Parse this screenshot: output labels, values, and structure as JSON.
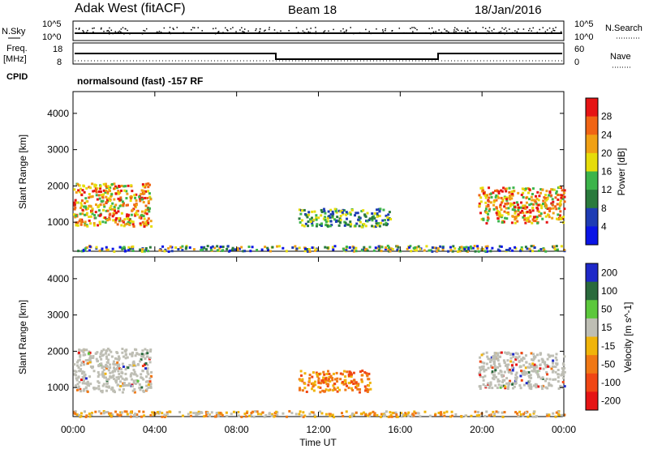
{
  "header": {
    "station": "Adak West (fitACF)",
    "beam": "Beam 18",
    "date": "18/Jan/2016"
  },
  "top_panels": {
    "nsky_label": "N.Sky",
    "nsearch_label": "N.Search",
    "freq_label_1": "Freq.",
    "freq_label_2": "[MHz]",
    "nave_label": "Nave",
    "cpid_label": "CPID",
    "cpid_value": "normalsound (fast) -157 RF",
    "noise_ticks": [
      "10^5",
      "10^0"
    ],
    "freq_ticks": [
      "18",
      "8"
    ],
    "nave_ticks": [
      "60",
      "0"
    ]
  },
  "colors": {
    "power": [
      "#0a14e6",
      "#1e3cb4",
      "#2a7a3c",
      "#3cb44a",
      "#e6dc0a",
      "#f0a014",
      "#f06414",
      "#e61414"
    ],
    "velocity": [
      "#1e28c8",
      "#2a6a3c",
      "#5cc83c",
      "#bebeb4",
      "#f0b40a",
      "#f07814",
      "#f04614",
      "#e61414"
    ]
  },
  "chart_data": [
    {
      "type": "heatmap",
      "title": "Power",
      "xlabel": "Time UT",
      "ylabel": "Slant Range [km]",
      "x_ticks": [
        "00:00",
        "04:00",
        "08:00",
        "12:00",
        "16:00",
        "20:00",
        "00:00"
      ],
      "xlim_hours": [
        0,
        24
      ],
      "ylim": [
        200,
        4600
      ],
      "y_ticks": [
        1000,
        2000,
        3000,
        4000
      ],
      "colorbar": {
        "label": "Power [dB]",
        "range": [
          0,
          32
        ],
        "ticks": [
          4,
          8,
          12,
          16,
          20,
          24,
          28
        ]
      },
      "regions": [
        {
          "t0": 0.0,
          "t1": 3.8,
          "r0": 900,
          "r1": 2100,
          "level": "high"
        },
        {
          "t0": 11.0,
          "t1": 15.5,
          "r0": 900,
          "r1": 1400,
          "level": "medium"
        },
        {
          "t0": 19.8,
          "t1": 24.0,
          "r0": 1000,
          "r1": 2000,
          "level": "high"
        },
        {
          "t0": 0.0,
          "t1": 24.0,
          "r0": 220,
          "r1": 380,
          "level": "low"
        }
      ]
    },
    {
      "type": "heatmap",
      "title": "Velocity",
      "xlabel": "Time UT",
      "ylabel": "Slant Range [km]",
      "x_ticks": [
        "00:00",
        "04:00",
        "08:00",
        "12:00",
        "16:00",
        "20:00",
        "00:00"
      ],
      "xlim_hours": [
        0,
        24
      ],
      "ylim": [
        200,
        4600
      ],
      "y_ticks": [
        1000,
        2000,
        3000,
        4000
      ],
      "colorbar": {
        "label": "Velocity [m s^-1]",
        "ticks": [
          "200",
          "100",
          "50",
          "15",
          "-15",
          "-50",
          "-100",
          "-200"
        ]
      },
      "regions": [
        {
          "t0": 0.0,
          "t1": 3.8,
          "r0": 900,
          "r1": 2100,
          "level": "ground"
        },
        {
          "t0": 11.0,
          "t1": 14.5,
          "r0": 900,
          "r1": 1500,
          "level": "negative"
        },
        {
          "t0": 19.8,
          "t1": 24.0,
          "r0": 1000,
          "r1": 2000,
          "level": "ground"
        },
        {
          "t0": 0.0,
          "t1": 24.0,
          "r0": 220,
          "r1": 380,
          "level": "negative-small"
        }
      ]
    }
  ]
}
